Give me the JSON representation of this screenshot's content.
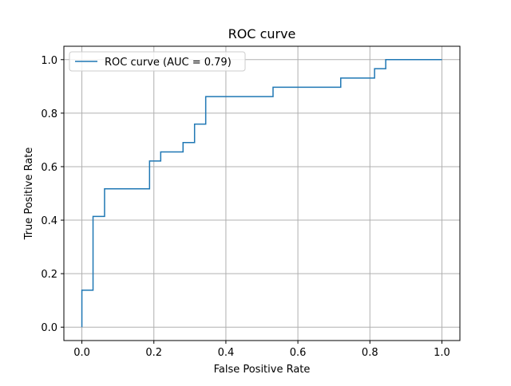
{
  "chart_data": {
    "type": "line",
    "title": "ROC curve",
    "xlabel": "False Positive Rate",
    "ylabel": "True Positive Rate",
    "xlim": [
      -0.05,
      1.05
    ],
    "ylim": [
      -0.05,
      1.05
    ],
    "grid": true,
    "legend_position": "upper-left",
    "xticks": [
      0.0,
      0.2,
      0.4,
      0.6,
      0.8,
      1.0
    ],
    "xtick_labels": [
      "0.0",
      "0.2",
      "0.4",
      "0.6",
      "0.8",
      "1.0"
    ],
    "yticks": [
      0.0,
      0.2,
      0.4,
      0.6,
      0.8,
      1.0
    ],
    "ytick_labels": [
      "0.0",
      "0.2",
      "0.4",
      "0.6",
      "0.8",
      "1.0"
    ],
    "series": [
      {
        "name": "ROC curve (AUC = 0.79)",
        "color": "#1f77b4",
        "step": true,
        "x": [
          0.0,
          0.0,
          0.031,
          0.031,
          0.063,
          0.063,
          0.188,
          0.188,
          0.219,
          0.219,
          0.281,
          0.281,
          0.313,
          0.313,
          0.344,
          0.344,
          0.531,
          0.531,
          0.719,
          0.719,
          0.813,
          0.813,
          0.844,
          0.844,
          1.0
        ],
        "y": [
          0.0,
          0.138,
          0.138,
          0.414,
          0.414,
          0.517,
          0.517,
          0.621,
          0.621,
          0.655,
          0.655,
          0.69,
          0.69,
          0.759,
          0.759,
          0.862,
          0.862,
          0.897,
          0.897,
          0.931,
          0.931,
          0.966,
          0.966,
          1.0,
          1.0
        ]
      }
    ]
  }
}
